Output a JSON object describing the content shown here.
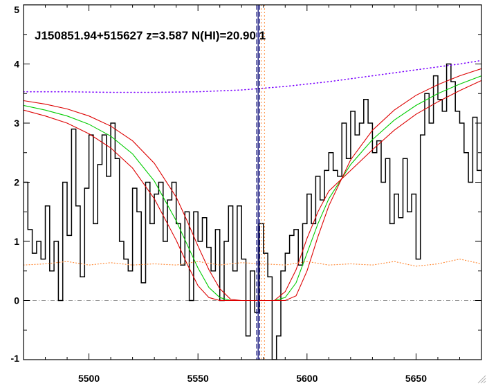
{
  "chart_data": {
    "type": "line",
    "title": "J150851.94+515627 z=3.587 N(HI)=20.90 1",
    "xlabel": "",
    "ylabel": "",
    "xlim": [
      5470,
      5680
    ],
    "ylim": [
      -1,
      5
    ],
    "x_ticks": [
      5500,
      5550,
      5600,
      5650
    ],
    "y_ticks": [
      -1,
      0,
      1,
      2,
      3,
      4,
      5
    ],
    "grid": false,
    "legend": "none",
    "colors": {
      "flux": "#000000",
      "fit": "#00cc00",
      "fit_bounds": "#dd0000",
      "continuum": "#7a00ff",
      "error": "#ff8c3a",
      "zero_line": "#999999",
      "line_center": "#1a1a80",
      "line_center_error": "#ff8c3a"
    },
    "line_center": 5577.6,
    "line_center_bounds": [
      5576.9,
      5578.3
    ],
    "line_center_error": [
      5579.0,
      5580.5
    ],
    "series": [
      {
        "key": "flux",
        "style": "step",
        "x": [
          5470,
          5472,
          5474,
          5476,
          5478,
          5480,
          5482,
          5484,
          5486,
          5488,
          5490,
          5492,
          5494,
          5496,
          5498,
          5500,
          5502,
          5504,
          5506,
          5508,
          5510,
          5512,
          5514,
          5516,
          5518,
          5520,
          5522,
          5524,
          5526,
          5528,
          5530,
          5532,
          5534,
          5536,
          5538,
          5540,
          5542,
          5544,
          5546,
          5548,
          5550,
          5552,
          5554,
          5556,
          5558,
          5560,
          5562,
          5564,
          5566,
          5568,
          5570,
          5572,
          5574,
          5576,
          5578,
          5580,
          5582,
          5584,
          5586,
          5588,
          5590,
          5592,
          5594,
          5596,
          5598,
          5600,
          5602,
          5604,
          5606,
          5608,
          5610,
          5612,
          5614,
          5616,
          5618,
          5620,
          5622,
          5624,
          5626,
          5628,
          5630,
          5632,
          5634,
          5636,
          5638,
          5640,
          5642,
          5644,
          5646,
          5648,
          5650,
          5652,
          5654,
          5656,
          5658,
          5660,
          5662,
          5664,
          5666,
          5668,
          5670,
          5672,
          5674,
          5676,
          5678
        ],
        "y": [
          2.0,
          1.2,
          0.8,
          1.0,
          0.7,
          1.6,
          0.5,
          1.0,
          0.0,
          2.0,
          1.1,
          2.9,
          1.6,
          0.4,
          1.9,
          2.8,
          1.3,
          2.3,
          2.8,
          2.1,
          3.0,
          2.4,
          1.0,
          0.7,
          0.5,
          1.9,
          1.5,
          0.3,
          2.0,
          1.3,
          1.8,
          2.0,
          1.0,
          1.7,
          2.0,
          1.3,
          0.6,
          1.5,
          0.0,
          1.5,
          1.0,
          1.4,
          0.9,
          0.5,
          1.2,
          0.0,
          1.0,
          1.6,
          0.5,
          1.6,
          0.7,
          -0.6,
          0.5,
          -0.2,
          1.3,
          0.8,
          0.4,
          -1.0,
          -0.6,
          0.5,
          0.8,
          1.1,
          1.2,
          0.6,
          1.3,
          1.8,
          1.3,
          2.1,
          1.7,
          2.2,
          2.5,
          2.2,
          2.1,
          3.0,
          2.4,
          3.2,
          2.8,
          3.0,
          3.4,
          3.0,
          2.5,
          2.7,
          2.0,
          2.4,
          1.3,
          1.8,
          1.4,
          2.4,
          1.5,
          1.8,
          0.7,
          2.8,
          3.5,
          3.0,
          3.8,
          3.4,
          3.2,
          4.0,
          3.7,
          3.2,
          3.0,
          2.5,
          2.0,
          3.1,
          2.2
        ]
      },
      {
        "key": "fit",
        "style": "line",
        "x": [
          5470,
          5480,
          5490,
          5500,
          5510,
          5520,
          5530,
          5540,
          5545,
          5550,
          5555,
          5560,
          5565,
          5570,
          5575,
          5580,
          5585,
          5590,
          5595,
          5600,
          5605,
          5610,
          5620,
          5630,
          5640,
          5650,
          5660,
          5670,
          5680
        ],
        "y": [
          3.3,
          3.22,
          3.12,
          2.98,
          2.78,
          2.48,
          2.02,
          1.35,
          0.95,
          0.55,
          0.22,
          0.05,
          0.0,
          0.0,
          0.0,
          0.0,
          0.0,
          0.05,
          0.3,
          0.8,
          1.3,
          1.72,
          2.3,
          2.72,
          3.05,
          3.3,
          3.5,
          3.66,
          3.8
        ]
      },
      {
        "key": "fit_upper",
        "style": "line",
        "x": [
          5470,
          5480,
          5490,
          5500,
          5510,
          5520,
          5530,
          5540,
          5545,
          5550,
          5555,
          5560,
          5565,
          5570,
          5575,
          5580,
          5585,
          5590,
          5595,
          5600,
          5605,
          5610,
          5620,
          5630,
          5640,
          5650,
          5660,
          5670,
          5680
        ],
        "y": [
          3.38,
          3.32,
          3.24,
          3.12,
          2.95,
          2.7,
          2.32,
          1.75,
          1.35,
          0.92,
          0.52,
          0.2,
          0.02,
          0.0,
          0.0,
          0.0,
          0.0,
          0.0,
          0.08,
          0.5,
          1.08,
          1.6,
          2.38,
          2.88,
          3.22,
          3.47,
          3.65,
          3.8,
          3.92
        ]
      },
      {
        "key": "fit_lower",
        "style": "line",
        "x": [
          5470,
          5480,
          5490,
          5500,
          5510,
          5520,
          5530,
          5540,
          5545,
          5550,
          5555,
          5560,
          5565,
          5570,
          5575,
          5580,
          5585,
          5590,
          5595,
          5600,
          5605,
          5610,
          5620,
          5630,
          5640,
          5650,
          5660,
          5670,
          5680
        ],
        "y": [
          3.22,
          3.12,
          3.0,
          2.82,
          2.58,
          2.24,
          1.72,
          1.02,
          0.62,
          0.25,
          0.05,
          0.0,
          0.0,
          0.0,
          0.0,
          0.0,
          0.0,
          0.15,
          0.52,
          1.05,
          1.5,
          1.85,
          2.2,
          2.55,
          2.88,
          3.15,
          3.36,
          3.55,
          3.72
        ]
      },
      {
        "key": "continuum",
        "style": "dotted",
        "x": [
          5470,
          5490,
          5510,
          5530,
          5550,
          5570,
          5590,
          5610,
          5630,
          5650,
          5670,
          5680
        ],
        "y": [
          3.53,
          3.53,
          3.52,
          3.52,
          3.53,
          3.56,
          3.62,
          3.7,
          3.8,
          3.9,
          4.0,
          4.06
        ]
      },
      {
        "key": "error",
        "style": "dotted",
        "x": [
          5470,
          5480,
          5490,
          5500,
          5510,
          5520,
          5530,
          5540,
          5550,
          5560,
          5570,
          5580,
          5590,
          5600,
          5610,
          5620,
          5630,
          5640,
          5650,
          5660,
          5670,
          5680
        ],
        "y": [
          0.6,
          0.62,
          0.66,
          0.6,
          0.64,
          0.6,
          0.62,
          0.6,
          0.66,
          0.6,
          0.64,
          0.62,
          0.6,
          0.66,
          0.6,
          0.62,
          0.6,
          0.66,
          0.58,
          0.62,
          0.7,
          0.62
        ]
      }
    ]
  }
}
